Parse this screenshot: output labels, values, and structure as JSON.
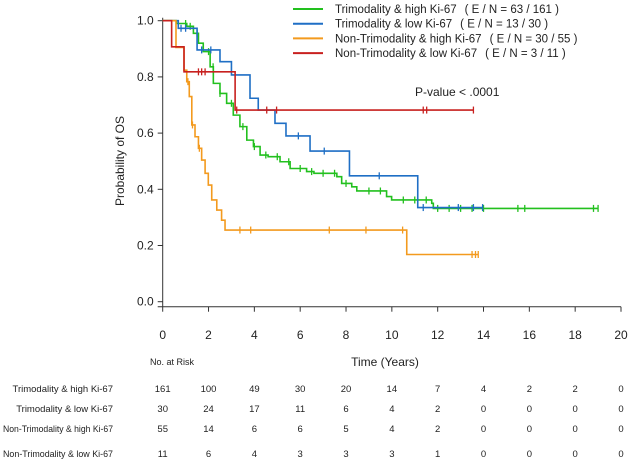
{
  "chart_data": {
    "type": "line",
    "subtype": "kaplan-meier step",
    "xlabel": "Time (Years)",
    "ylabel": "Probability of OS",
    "xlim": [
      0,
      20
    ],
    "ylim": [
      0,
      1
    ],
    "xticks": [
      "0",
      "2",
      "4",
      "6",
      "8",
      "10",
      "12",
      "14",
      "16",
      "18",
      "20"
    ],
    "yticks": [
      "0.0",
      "0.2",
      "0.4",
      "0.6",
      "0.8",
      "1.0"
    ],
    "grid": false,
    "legend_position": "top-right",
    "annotation": "P-value < .0001",
    "series": [
      {
        "name": "Trimodality & high Ki-67",
        "stat": "( E / N = 63 / 161 )",
        "color": "#22c01e",
        "steps": [
          [
            0,
            1.0
          ],
          [
            0.6,
            0.99
          ],
          [
            1.05,
            0.98
          ],
          [
            1.34,
            0.955
          ],
          [
            1.56,
            0.92
          ],
          [
            1.77,
            0.89
          ],
          [
            2.07,
            0.836
          ],
          [
            2.21,
            0.777
          ],
          [
            2.5,
            0.741
          ],
          [
            2.79,
            0.706
          ],
          [
            3.08,
            0.664
          ],
          [
            3.37,
            0.623
          ],
          [
            3.67,
            0.575
          ],
          [
            3.96,
            0.552
          ],
          [
            4.25,
            0.522
          ],
          [
            4.6,
            0.516
          ],
          [
            5.12,
            0.498
          ],
          [
            5.56,
            0.474
          ],
          [
            6.28,
            0.463
          ],
          [
            6.6,
            0.457
          ],
          [
            7.6,
            0.445
          ],
          [
            7.81,
            0.421
          ],
          [
            8.25,
            0.409
          ],
          [
            8.47,
            0.394
          ],
          [
            9.77,
            0.374
          ],
          [
            9.99,
            0.362
          ],
          [
            11.74,
            0.35
          ],
          [
            11.81,
            0.332
          ]
        ],
        "end": 19.0,
        "censored": [
          1.0,
          1.2,
          1.5,
          2.0,
          2.2,
          2.5,
          3.0,
          3.5,
          4.0,
          4.5,
          5.0,
          5.5,
          6.0,
          6.5,
          7.0,
          7.5,
          8.0,
          9.0,
          9.5,
          10.5,
          11.0,
          11.5,
          12.0,
          12.5,
          13.0,
          13.5,
          14.0,
          15.5,
          15.8,
          18.8,
          19.0
        ]
      },
      {
        "name": "Trimodality & low Ki-67",
        "stat": "( E / N = 13 / 30 )",
        "color": "#1f6fc5",
        "steps": [
          [
            0,
            1.0
          ],
          [
            0.68,
            0.973
          ],
          [
            1.5,
            0.896
          ],
          [
            2.5,
            0.854
          ],
          [
            3.0,
            0.807
          ],
          [
            3.81,
            0.724
          ],
          [
            4.17,
            0.682
          ],
          [
            4.9,
            0.635
          ],
          [
            5.38,
            0.59
          ],
          [
            6.43,
            0.536
          ],
          [
            8.15,
            0.448
          ],
          [
            11.13,
            0.335
          ]
        ],
        "end": 13.96,
        "censored": [
          0.8,
          1.0,
          1.7,
          2.1,
          5.92,
          7.05,
          9.45,
          11.37,
          12.9,
          13.56,
          13.96
        ]
      },
      {
        "name": "Non-Trimodality & high Ki-67",
        "stat": "( E / N = 30 / 55 )",
        "color": "#f39a1e",
        "steps": [
          [
            0,
            1.0
          ],
          [
            0.58,
            0.905
          ],
          [
            0.93,
            0.824
          ],
          [
            1.05,
            0.783
          ],
          [
            1.16,
            0.73
          ],
          [
            1.27,
            0.629
          ],
          [
            1.41,
            0.587
          ],
          [
            1.56,
            0.546
          ],
          [
            1.7,
            0.504
          ],
          [
            1.85,
            0.457
          ],
          [
            1.99,
            0.415
          ],
          [
            2.14,
            0.362
          ],
          [
            2.36,
            0.326
          ],
          [
            2.57,
            0.29
          ],
          [
            2.72,
            0.255
          ],
          [
            10.65,
            0.168
          ]
        ],
        "end": 13.77,
        "censored": [
          1.1,
          1.3,
          1.6,
          3.37,
          3.84,
          7.27,
          8.87,
          10.47,
          13.5,
          13.65,
          13.77
        ]
      },
      {
        "name": "Non-Trimodality & low Ki-67",
        "stat": "( E / N = 3 / 11 )",
        "color": "#c8201f",
        "steps": [
          [
            0,
            1.0
          ],
          [
            0.39,
            0.907
          ],
          [
            0.93,
            0.818
          ],
          [
            3.16,
            0.682
          ]
        ],
        "end": 13.56,
        "censored": [
          1.56,
          1.7,
          1.85,
          3.23,
          4.54,
          4.97,
          11.37,
          11.52,
          13.56
        ]
      }
    ],
    "risk_table": {
      "title": "No. at Risk",
      "times": [
        0,
        2,
        4,
        6,
        8,
        10,
        12,
        14,
        16,
        18,
        20
      ],
      "rows": [
        {
          "label": "Trimodality & high Ki-67",
          "values": [
            "161",
            "100",
            "49",
            "30",
            "20",
            "14",
            "7",
            "4",
            "2",
            "2",
            "0"
          ]
        },
        {
          "label": "Trimodality & low Ki-67",
          "values": [
            "30",
            "24",
            "17",
            "11",
            "6",
            "4",
            "2",
            "0",
            "0",
            "0",
            "0"
          ]
        },
        {
          "label": "Non-Trimodality & high Ki-67",
          "values": [
            "55",
            "14",
            "6",
            "6",
            "5",
            "4",
            "2",
            "0",
            "0",
            "0",
            "0"
          ]
        },
        {
          "label": "Non-Trimodality  & low Ki-67",
          "values": [
            "11",
            "6",
            "4",
            "3",
            "3",
            "3",
            "1",
            "0",
            "0",
            "0",
            "0"
          ]
        }
      ]
    }
  }
}
